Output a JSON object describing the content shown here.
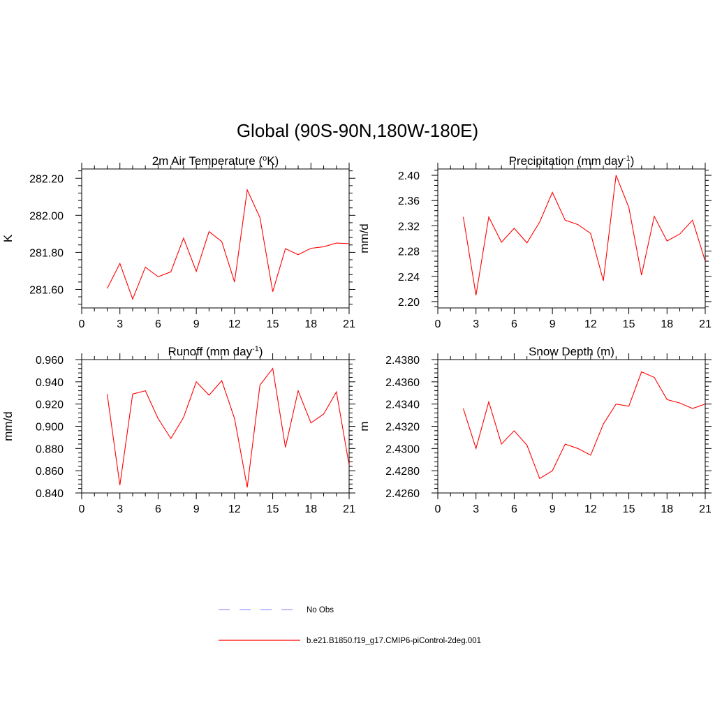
{
  "figure_title": "Global (90S-90N,180W-180E)",
  "legend": {
    "entries": [
      {
        "label": "No Obs",
        "color": "#9999ff",
        "dashed": true
      },
      {
        "label": "b.e21.B1850.f19_g17.CMIP6-piControl-2deg.001",
        "color": "#ff0000",
        "dashed": false
      }
    ]
  },
  "chart_data": [
    {
      "type": "line",
      "title": {
        "main": "2m Air Temperature (",
        "sup": "o",
        "tail": "K)"
      },
      "ylabel": "K",
      "xlim": [
        0,
        21
      ],
      "ylim": [
        281.5,
        282.25
      ],
      "xticks": [
        "0",
        "3",
        "6",
        "9",
        "12",
        "15",
        "18",
        "21"
      ],
      "yticks": [
        281.6,
        281.8,
        282.0,
        282.2
      ],
      "ytick_labels": [
        "281.60",
        "281.80",
        "282.00",
        "282.20"
      ],
      "series": [
        {
          "color": "#ff0000",
          "x": [
            2,
            3,
            4,
            5,
            6,
            7,
            8,
            9,
            10,
            11,
            12,
            13,
            14,
            15,
            16,
            17,
            18,
            19,
            20,
            21
          ],
          "values": [
            281.605,
            281.74,
            281.548,
            281.72,
            281.668,
            281.695,
            281.877,
            281.697,
            281.912,
            281.858,
            281.64,
            282.137,
            281.987,
            281.588,
            281.82,
            281.787,
            281.822,
            281.83,
            281.85,
            281.847
          ]
        }
      ]
    },
    {
      "type": "line",
      "title": {
        "main": "Precipitation (mm day",
        "sup": "-1",
        "tail": ")"
      },
      "ylabel": "mm/d",
      "xlim": [
        0,
        21
      ],
      "ylim": [
        2.19,
        2.41
      ],
      "xticks": [
        "0",
        "3",
        "6",
        "9",
        "12",
        "15",
        "18",
        "21"
      ],
      "yticks": [
        2.2,
        2.24,
        2.28,
        2.32,
        2.36,
        2.4
      ],
      "ytick_labels": [
        "2.20",
        "2.24",
        "2.28",
        "2.32",
        "2.36",
        "2.40"
      ],
      "series": [
        {
          "color": "#ff0000",
          "x": [
            2,
            3,
            4,
            5,
            6,
            7,
            8,
            9,
            10,
            11,
            12,
            13,
            14,
            15,
            16,
            17,
            18,
            19,
            20,
            21
          ],
          "values": [
            2.334,
            2.21,
            2.334,
            2.294,
            2.316,
            2.293,
            2.326,
            2.373,
            2.329,
            2.322,
            2.308,
            2.233,
            2.4,
            2.349,
            2.242,
            2.335,
            2.296,
            2.307,
            2.329,
            2.264
          ]
        }
      ]
    },
    {
      "type": "line",
      "title": {
        "main": "Runoff (mm day",
        "sup": "-1",
        "tail": ")"
      },
      "ylabel": "mm/d",
      "xlim": [
        0,
        21
      ],
      "ylim": [
        0.84,
        0.96
      ],
      "xticks": [
        "0",
        "3",
        "6",
        "9",
        "12",
        "15",
        "18",
        "21"
      ],
      "yticks": [
        0.84,
        0.86,
        0.88,
        0.9,
        0.92,
        0.94,
        0.96
      ],
      "ytick_labels": [
        "0.840",
        "0.860",
        "0.880",
        "0.900",
        "0.920",
        "0.940",
        "0.960"
      ],
      "series": [
        {
          "color": "#ff0000",
          "x": [
            2,
            3,
            4,
            5,
            6,
            7,
            8,
            9,
            10,
            11,
            12,
            13,
            14,
            15,
            16,
            17,
            18,
            19,
            20,
            21
          ],
          "values": [
            0.929,
            0.847,
            0.929,
            0.932,
            0.907,
            0.889,
            0.908,
            0.94,
            0.928,
            0.941,
            0.907,
            0.845,
            0.937,
            0.952,
            0.881,
            0.932,
            0.903,
            0.911,
            0.931,
            0.865
          ]
        }
      ]
    },
    {
      "type": "line",
      "title": {
        "main": "Snow Depth (m)",
        "sup": "",
        "tail": ""
      },
      "ylabel": "m",
      "xlim": [
        0,
        21
      ],
      "ylim": [
        2.426,
        2.438
      ],
      "xticks": [
        "0",
        "3",
        "6",
        "9",
        "12",
        "15",
        "18",
        "21"
      ],
      "yticks": [
        2.426,
        2.428,
        2.43,
        2.432,
        2.434,
        2.436,
        2.438
      ],
      "ytick_labels": [
        "2.4260",
        "2.4280",
        "2.4300",
        "2.4320",
        "2.4340",
        "2.4360",
        "2.4380"
      ],
      "series": [
        {
          "color": "#ff0000",
          "x": [
            2,
            3,
            4,
            5,
            6,
            7,
            8,
            9,
            10,
            11,
            12,
            13,
            14,
            15,
            16,
            17,
            18,
            19,
            20,
            21
          ],
          "values": [
            2.4336,
            2.43,
            2.4342,
            2.4304,
            2.4316,
            2.4303,
            2.4273,
            2.428,
            2.4304,
            2.43,
            2.4294,
            2.4322,
            2.434,
            2.4338,
            2.4369,
            2.4364,
            2.4344,
            2.4341,
            2.4336,
            2.434
          ]
        }
      ]
    }
  ]
}
